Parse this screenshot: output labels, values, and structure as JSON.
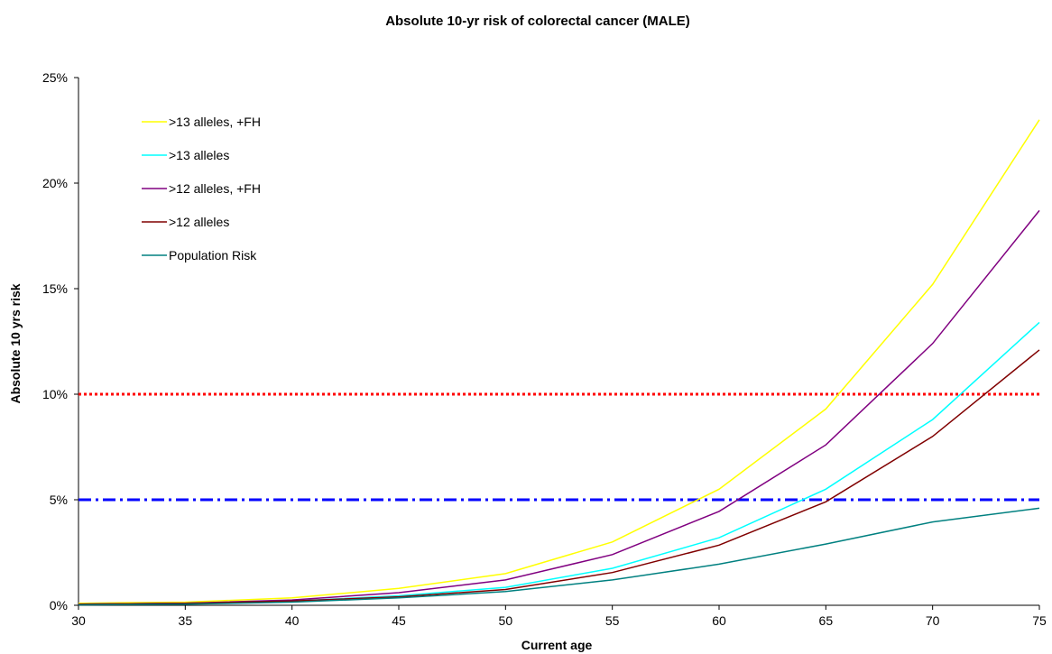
{
  "chart_data": {
    "type": "line",
    "title": "Absolute 10-yr risk of colorectal cancer (MALE)",
    "xlabel": "Current age",
    "ylabel": "Absolute 10 yrs risk",
    "x": [
      30,
      35,
      40,
      45,
      50,
      55,
      60,
      65,
      70,
      75
    ],
    "xticks": [
      "30",
      "35",
      "40",
      "45",
      "50",
      "55",
      "60",
      "65",
      "70",
      "75"
    ],
    "xlim": [
      30,
      75
    ],
    "ylim": [
      0,
      25
    ],
    "yticks": [
      "0%",
      "5%",
      "10%",
      "15%",
      "20%",
      "25%"
    ],
    "grid": false,
    "legend_position": "top-left",
    "series": [
      {
        "name": ">13 alleles, +FH",
        "color": "#ffff00",
        "values": [
          0.1,
          0.15,
          0.35,
          0.8,
          1.5,
          3.0,
          5.5,
          9.3,
          15.2,
          23.0
        ]
      },
      {
        "name": ">13 alleles",
        "color": "#00ffff",
        "values": [
          0.05,
          0.1,
          0.2,
          0.45,
          0.85,
          1.75,
          3.2,
          5.5,
          8.8,
          13.4
        ]
      },
      {
        "name": ">12 alleles, +FH",
        "color": "#800080",
        "values": [
          0.05,
          0.1,
          0.25,
          0.6,
          1.2,
          2.4,
          4.45,
          7.6,
          12.4,
          18.7
        ]
      },
      {
        "name": ">12 alleles",
        "color": "#800000",
        "values": [
          0.05,
          0.1,
          0.2,
          0.4,
          0.75,
          1.55,
          2.85,
          4.9,
          8.0,
          12.1
        ]
      },
      {
        "name": "Population Risk",
        "color": "#008080",
        "values": [
          0.02,
          0.05,
          0.15,
          0.35,
          0.65,
          1.2,
          1.95,
          2.9,
          3.95,
          4.6
        ]
      }
    ],
    "reference_lines": [
      {
        "y": 10,
        "color": "#ff0000",
        "style": "dotted"
      },
      {
        "y": 5,
        "color": "#0000ff",
        "style": "dash-dot"
      }
    ]
  }
}
